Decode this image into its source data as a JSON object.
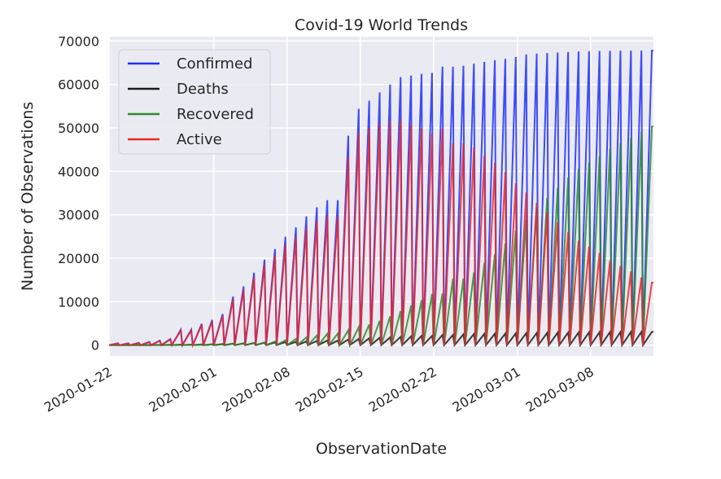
{
  "chart_data": {
    "type": "line",
    "title": "Covid-19 World Trends",
    "xlabel": "ObservationDate",
    "ylabel": "Number of Observations",
    "ylim": [
      -2500,
      71000
    ],
    "yticks": [
      0,
      10000,
      20000,
      30000,
      40000,
      50000,
      60000,
      70000
    ],
    "ytick_labels": [
      "0",
      "10000",
      "20000",
      "30000",
      "40000",
      "50000",
      "60000",
      "70000"
    ],
    "xtick_labels": [
      "2020-01-22",
      "2020-02-01",
      "2020-02-08",
      "2020-02-15",
      "2020-02-22",
      "2020-03-01",
      "2020-03-08"
    ],
    "xtick_day_index": [
      0,
      10,
      17,
      24,
      31,
      39,
      46
    ],
    "x_day_range": [
      0,
      52
    ],
    "dates": [
      "2020-01-22",
      "2020-01-23",
      "2020-01-24",
      "2020-01-25",
      "2020-01-26",
      "2020-01-27",
      "2020-01-28",
      "2020-01-29",
      "2020-01-30",
      "2020-01-31",
      "2020-02-01",
      "2020-02-02",
      "2020-02-03",
      "2020-02-04",
      "2020-02-05",
      "2020-02-06",
      "2020-02-07",
      "2020-02-08",
      "2020-02-09",
      "2020-02-10",
      "2020-02-11",
      "2020-02-12",
      "2020-02-13",
      "2020-02-14",
      "2020-02-15",
      "2020-02-16",
      "2020-02-17",
      "2020-02-18",
      "2020-02-19",
      "2020-02-20",
      "2020-02-21",
      "2020-02-22",
      "2020-02-23",
      "2020-02-24",
      "2020-02-25",
      "2020-02-26",
      "2020-02-27",
      "2020-02-28",
      "2020-02-29",
      "2020-03-01",
      "2020-03-02",
      "2020-03-03",
      "2020-03-04",
      "2020-03-05",
      "2020-03-06",
      "2020-03-07",
      "2020-03-08",
      "2020-03-09",
      "2020-03-10",
      "2020-03-11",
      "2020-03-12",
      "2020-03-13"
    ],
    "legend": {
      "position": "upper-left",
      "entries": [
        "Confirmed",
        "Deaths",
        "Recovered",
        "Active"
      ]
    },
    "grid": true,
    "series": [
      {
        "name": "Confirmed",
        "color": "#1f2fff",
        "values": [
          444,
          444,
          549,
          761,
          1058,
          1423,
          3554,
          3554,
          4903,
          5806,
          7153,
          11177,
          13522,
          16678,
          19665,
          22112,
          24953,
          27100,
          29631,
          31728,
          33366,
          33366,
          48206,
          54406,
          56249,
          58182,
          59989,
          61682,
          62031,
          62442,
          62662,
          64084,
          64084,
          64287,
          64786,
          65187,
          65596,
          65914,
          66337,
          66907,
          67103,
          67217,
          67332,
          67466,
          67592,
          67666,
          67707,
          67743,
          67760,
          67773,
          67781,
          67786
        ]
      },
      {
        "name": "Deaths",
        "color": "#1a1a1a",
        "values": [
          17,
          17,
          24,
          40,
          52,
          76,
          125,
          125,
          162,
          204,
          249,
          350,
          414,
          479,
          549,
          618,
          699,
          780,
          871,
          974,
          1068,
          1068,
          1310,
          1457,
          1596,
          1696,
          1789,
          1921,
          2029,
          2144,
          2144,
          2346,
          2346,
          2495,
          2563,
          2615,
          2641,
          2682,
          2727,
          2761,
          2803,
          2835,
          2871,
          2902,
          2931,
          2959,
          2986,
          3008,
          3024,
          3046,
          3056,
          3062
        ]
      },
      {
        "name": "Recovered",
        "color": "#2e8b2e",
        "values": [
          28,
          28,
          31,
          32,
          42,
          45,
          80,
          88,
          90,
          141,
          168,
          295,
          386,
          522,
          633,
          817,
          1115,
          1439,
          1795,
          2222,
          2639,
          2686,
          3441,
          4131,
          4774,
          5623,
          6639,
          7862,
          9128,
          10337,
          11788,
          11881,
          15299,
          15343,
          16748,
          18971,
          20969,
          23383,
          26403,
          28993,
          31536,
          33934,
          36208,
          38557,
          40592,
          42033,
          43500,
          45235,
          46488,
          47743,
          49134,
          50318
        ]
      },
      {
        "name": "Active",
        "color": "#e8282c",
        "values": [
          399,
          399,
          494,
          689,
          964,
          1302,
          3349,
          3341,
          4651,
          5461,
          6736,
          10532,
          12722,
          15677,
          18483,
          20677,
          23139,
          24881,
          26965,
          28532,
          29659,
          29612,
          43455,
          48818,
          49879,
          50863,
          51561,
          51899,
          50874,
          49961,
          48730,
          49857,
          46439,
          46449,
          45475,
          43601,
          41986,
          39849,
          37207,
          35153,
          32764,
          30448,
          28253,
          26007,
          24069,
          22674,
          21221,
          19500,
          18248,
          16984,
          15591,
          14406
        ]
      }
    ]
  }
}
